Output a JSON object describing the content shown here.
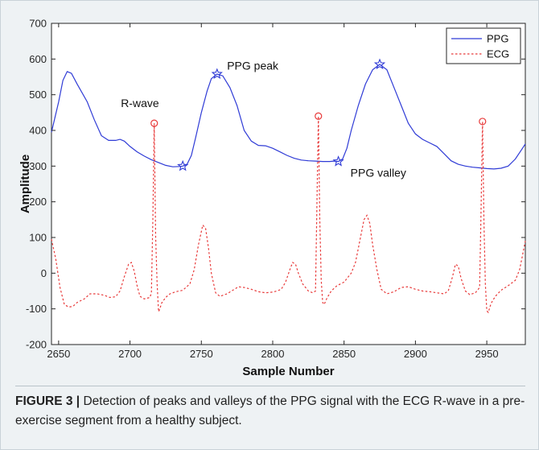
{
  "chart_data": {
    "type": "line",
    "title": "",
    "xlabel": "Sample Number",
    "ylabel": "Amplitude",
    "xlim": [
      2645,
      2977
    ],
    "ylim": [
      -200,
      700
    ],
    "x_ticks": [
      2650,
      2700,
      2750,
      2800,
      2850,
      2900,
      2950
    ],
    "y_ticks": [
      -200,
      -100,
      0,
      100,
      200,
      300,
      400,
      500,
      600,
      700
    ],
    "grid": false,
    "legend_position": "top-right",
    "series": [
      {
        "name": "PPG",
        "color": "#2f3bd6",
        "style": "solid",
        "points": [
          [
            2645,
            395
          ],
          [
            2650,
            480
          ],
          [
            2653,
            540
          ],
          [
            2656,
            565
          ],
          [
            2659,
            560
          ],
          [
            2663,
            530
          ],
          [
            2670,
            480
          ],
          [
            2675,
            430
          ],
          [
            2680,
            385
          ],
          [
            2685,
            372
          ],
          [
            2690,
            372
          ],
          [
            2693,
            375
          ],
          [
            2696,
            370
          ],
          [
            2700,
            355
          ],
          [
            2705,
            340
          ],
          [
            2710,
            328
          ],
          [
            2715,
            318
          ],
          [
            2720,
            310
          ],
          [
            2725,
            302
          ],
          [
            2730,
            298
          ],
          [
            2735,
            299
          ],
          [
            2737,
            300
          ],
          [
            2740,
            305
          ],
          [
            2743,
            330
          ],
          [
            2746,
            380
          ],
          [
            2750,
            450
          ],
          [
            2754,
            510
          ],
          [
            2757,
            545
          ],
          [
            2761,
            558
          ],
          [
            2765,
            553
          ],
          [
            2770,
            520
          ],
          [
            2775,
            470
          ],
          [
            2780,
            400
          ],
          [
            2785,
            370
          ],
          [
            2790,
            358
          ],
          [
            2795,
            357
          ],
          [
            2800,
            350
          ],
          [
            2805,
            340
          ],
          [
            2810,
            330
          ],
          [
            2815,
            322
          ],
          [
            2820,
            317
          ],
          [
            2825,
            315
          ],
          [
            2830,
            314
          ],
          [
            2835,
            313
          ],
          [
            2840,
            313
          ],
          [
            2843,
            314
          ],
          [
            2846,
            313
          ],
          [
            2849,
            320
          ],
          [
            2852,
            350
          ],
          [
            2855,
            400
          ],
          [
            2860,
            470
          ],
          [
            2865,
            530
          ],
          [
            2870,
            570
          ],
          [
            2875,
            585
          ],
          [
            2880,
            570
          ],
          [
            2885,
            520
          ],
          [
            2890,
            470
          ],
          [
            2895,
            420
          ],
          [
            2900,
            390
          ],
          [
            2905,
            375
          ],
          [
            2910,
            365
          ],
          [
            2915,
            355
          ],
          [
            2920,
            335
          ],
          [
            2925,
            315
          ],
          [
            2930,
            305
          ],
          [
            2935,
            300
          ],
          [
            2940,
            297
          ],
          [
            2945,
            295
          ],
          [
            2950,
            293
          ],
          [
            2955,
            292
          ],
          [
            2960,
            294
          ],
          [
            2965,
            300
          ],
          [
            2970,
            320
          ],
          [
            2975,
            350
          ],
          [
            2977,
            362
          ]
        ]
      },
      {
        "name": "ECG",
        "color": "#e83a3a",
        "style": "dotted",
        "points": [
          [
            2645,
            95
          ],
          [
            2648,
            40
          ],
          [
            2651,
            -40
          ],
          [
            2654,
            -88
          ],
          [
            2657,
            -95
          ],
          [
            2660,
            -93
          ],
          [
            2663,
            -82
          ],
          [
            2668,
            -72
          ],
          [
            2672,
            -58
          ],
          [
            2677,
            -58
          ],
          [
            2682,
            -62
          ],
          [
            2686,
            -68
          ],
          [
            2690,
            -66
          ],
          [
            2693,
            -50
          ],
          [
            2696,
            -10
          ],
          [
            2699,
            25
          ],
          [
            2701,
            30
          ],
          [
            2703,
            5
          ],
          [
            2705,
            -35
          ],
          [
            2707,
            -65
          ],
          [
            2710,
            -72
          ],
          [
            2714,
            -68
          ],
          [
            2715,
            -55
          ],
          [
            2716,
            150
          ],
          [
            2717,
            420
          ],
          [
            2718,
            100
          ],
          [
            2719,
            -30
          ],
          [
            2720,
            -108
          ],
          [
            2721,
            -100
          ],
          [
            2722,
            -85
          ],
          [
            2725,
            -68
          ],
          [
            2728,
            -58
          ],
          [
            2732,
            -52
          ],
          [
            2737,
            -48
          ],
          [
            2742,
            -30
          ],
          [
            2745,
            10
          ],
          [
            2748,
            80
          ],
          [
            2751,
            135
          ],
          [
            2753,
            125
          ],
          [
            2755,
            70
          ],
          [
            2757,
            0
          ],
          [
            2760,
            -55
          ],
          [
            2763,
            -65
          ],
          [
            2768,
            -58
          ],
          [
            2772,
            -48
          ],
          [
            2776,
            -38
          ],
          [
            2780,
            -40
          ],
          [
            2785,
            -45
          ],
          [
            2790,
            -52
          ],
          [
            2795,
            -55
          ],
          [
            2800,
            -53
          ],
          [
            2803,
            -50
          ],
          [
            2806,
            -45
          ],
          [
            2809,
            -25
          ],
          [
            2812,
            10
          ],
          [
            2814,
            30
          ],
          [
            2816,
            25
          ],
          [
            2818,
            0
          ],
          [
            2821,
            -30
          ],
          [
            2825,
            -50
          ],
          [
            2828,
            -55
          ],
          [
            2830,
            -50
          ],
          [
            2831,
            200
          ],
          [
            2832,
            440
          ],
          [
            2833,
            150
          ],
          [
            2834,
            -20
          ],
          [
            2835,
            -82
          ],
          [
            2836,
            -88
          ],
          [
            2838,
            -70
          ],
          [
            2841,
            -50
          ],
          [
            2845,
            -35
          ],
          [
            2850,
            -25
          ],
          [
            2855,
            0
          ],
          [
            2858,
            30
          ],
          [
            2861,
            90
          ],
          [
            2864,
            150
          ],
          [
            2866,
            162
          ],
          [
            2868,
            140
          ],
          [
            2870,
            80
          ],
          [
            2873,
            10
          ],
          [
            2876,
            -45
          ],
          [
            2880,
            -58
          ],
          [
            2885,
            -52
          ],
          [
            2890,
            -40
          ],
          [
            2895,
            -38
          ],
          [
            2900,
            -45
          ],
          [
            2905,
            -50
          ],
          [
            2910,
            -52
          ],
          [
            2915,
            -55
          ],
          [
            2920,
            -58
          ],
          [
            2923,
            -50
          ],
          [
            2926,
            -10
          ],
          [
            2928,
            25
          ],
          [
            2930,
            20
          ],
          [
            2932,
            -15
          ],
          [
            2935,
            -50
          ],
          [
            2938,
            -60
          ],
          [
            2942,
            -55
          ],
          [
            2945,
            -40
          ],
          [
            2946,
            180
          ],
          [
            2947,
            425
          ],
          [
            2948,
            140
          ],
          [
            2949,
            -30
          ],
          [
            2950,
            -105
          ],
          [
            2951,
            -110
          ],
          [
            2953,
            -85
          ],
          [
            2956,
            -65
          ],
          [
            2960,
            -48
          ],
          [
            2965,
            -35
          ],
          [
            2970,
            -20
          ],
          [
            2973,
            10
          ],
          [
            2975,
            50
          ],
          [
            2977,
            90
          ]
        ]
      }
    ],
    "markers": [
      {
        "series": "PPG",
        "shape": "star",
        "x": 2737,
        "y": 300
      },
      {
        "series": "PPG",
        "shape": "star",
        "x": 2761,
        "y": 558
      },
      {
        "series": "PPG",
        "shape": "star",
        "x": 2846,
        "y": 313
      },
      {
        "series": "PPG",
        "shape": "star",
        "x": 2875,
        "y": 585
      },
      {
        "series": "ECG",
        "shape": "circle",
        "x": 2717,
        "y": 420
      },
      {
        "series": "ECG",
        "shape": "circle",
        "x": 2832,
        "y": 440
      },
      {
        "series": "ECG",
        "shape": "circle",
        "x": 2947,
        "y": 425
      }
    ],
    "annotations": [
      {
        "text": "R-wave",
        "x": 2707,
        "y": 465
      },
      {
        "text": "PPG peak",
        "x": 2786,
        "y": 570
      },
      {
        "text": "PPG valley",
        "x": 2874,
        "y": 270
      }
    ]
  },
  "caption": {
    "label": "FIGURE 3 |",
    "text": " Detection of peaks and valleys of the PPG signal with the ECG R-wave in a pre-exercise segment from a healthy subject."
  }
}
